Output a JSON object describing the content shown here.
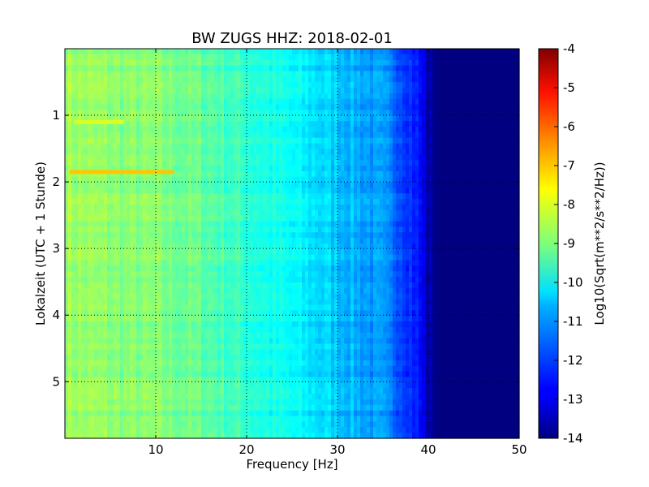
{
  "chart_data": {
    "type": "heatmap",
    "title": "BW ZUGS HHZ: 2018-02-01",
    "xlabel": "Frequency [Hz]",
    "ylabel": "Lokalzeit (UTC + 1 Stunde)",
    "x_ticks": [
      "10",
      "20",
      "30",
      "40",
      "50"
    ],
    "x_tick_values": [
      10,
      20,
      30,
      40,
      50
    ],
    "y_ticks": [
      "1",
      "2",
      "3",
      "4",
      "5"
    ],
    "y_tick_values": [
      1,
      2,
      3,
      4,
      5
    ],
    "xlim": [
      0,
      50
    ],
    "ylim": [
      5.85,
      0
    ],
    "grid": true,
    "colormap": "jet",
    "colorbar": {
      "label": "Log10(Sqrt(m**2/s**2/Hz))",
      "range": [
        -14,
        -4
      ],
      "ticks": [
        "-4",
        "-5",
        "-6",
        "-7",
        "-8",
        "-9",
        "-10",
        "-11",
        "-12",
        "-13",
        "-14"
      ],
      "tick_values": [
        -4,
        -5,
        -6,
        -7,
        -8,
        -9,
        -10,
        -11,
        -12,
        -13,
        -14
      ]
    },
    "spectral_profile": {
      "frequency_hz": [
        0,
        5,
        10,
        15,
        20,
        25,
        30,
        35,
        37,
        39,
        40,
        41,
        50
      ],
      "level": [
        -8.7,
        -8.9,
        -9.0,
        -9.3,
        -9.8,
        -10.3,
        -10.8,
        -11.4,
        -11.9,
        -12.6,
        -13.6,
        -14.0,
        -14.0
      ]
    },
    "features": [
      {
        "time_h": 1.85,
        "f_start_hz": 0.5,
        "f_end_hz": 12.0,
        "level": -7.2
      },
      {
        "time_h": 1.1,
        "f_start_hz": 1.0,
        "f_end_hz": 6.5,
        "level": -8.1
      }
    ]
  }
}
